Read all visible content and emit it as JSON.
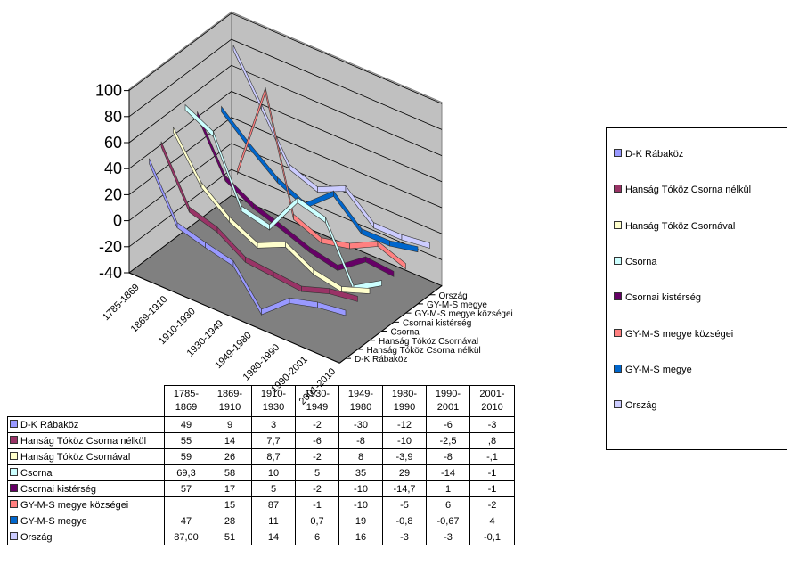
{
  "chart_data": {
    "type": "line",
    "title": "",
    "categories": [
      "1785-1869",
      "1869-1910",
      "1910-1930",
      "1930-1949",
      "1949-1980",
      "1980-1990",
      "1990-2001",
      "2001-2010"
    ],
    "ylim": [
      -40,
      100
    ],
    "yticks": [
      "100",
      "80",
      "60",
      "40",
      "20",
      "0",
      "-20",
      "-40"
    ],
    "grid": true,
    "legend_position": "right",
    "series": [
      {
        "name": "D-K Rábaköz",
        "color": "#9999ff",
        "values": [
          49,
          9,
          3,
          -2,
          -30,
          -12,
          -6,
          -3
        ],
        "labels": [
          "49",
          "9",
          "3",
          "-2",
          "-30",
          "-12",
          "-6",
          "-3"
        ]
      },
      {
        "name": "Hanság Tóköz Csorna nélkül",
        "color": "#993366",
        "values": [
          55,
          14,
          7.7,
          -6,
          -8,
          -10,
          -2.5,
          0.8
        ],
        "labels": [
          "55",
          "14",
          "7,7",
          "-6",
          "-8",
          "-10",
          "-2,5",
          ",8"
        ]
      },
      {
        "name": "Hanság Tóköz Csornával",
        "color": "#ffffcc",
        "values": [
          59,
          26,
          8.7,
          -2,
          8,
          -3.9,
          -8,
          -0.1
        ],
        "labels": [
          "59",
          "26",
          "8,7",
          "-2",
          "8",
          "-3,9",
          "-8",
          "-,1"
        ]
      },
      {
        "name": "Csorna",
        "color": "#ccffff",
        "values": [
          69.3,
          58,
          10,
          5,
          35,
          29,
          -14,
          -1
        ],
        "labels": [
          "69,3",
          "58",
          "10",
          "5",
          "35",
          "29",
          "-14",
          "-1"
        ]
      },
      {
        "name": "Csornai kistérség",
        "color": "#660066",
        "values": [
          57,
          17,
          5,
          -2,
          -10,
          -14.7,
          1,
          -1
        ],
        "labels": [
          "57",
          "17",
          "5",
          "-2",
          "-10",
          "-14,7",
          "1",
          "-1"
        ]
      },
      {
        "name": "GY-M-S megye községei",
        "color": "#ff8080",
        "values": [
          null,
          15,
          87,
          -1,
          -10,
          -5,
          6,
          -2
        ],
        "labels": [
          "",
          "15",
          "87",
          "-1",
          "-10",
          "-5",
          "6",
          "-2"
        ]
      },
      {
        "name": "GY-M-S megye",
        "color": "#0066cc",
        "values": [
          47,
          28,
          11,
          0.7,
          19,
          -0.8,
          -0.67,
          4
        ],
        "labels": [
          "47",
          "28",
          "11",
          "0,7",
          "19",
          "-0,8",
          "-0,67",
          "4"
        ]
      },
      {
        "name": "Ország",
        "color": "#ccccff",
        "values": [
          87,
          51,
          14,
          6,
          16,
          -3,
          -3,
          -0.1
        ],
        "labels": [
          "87,00",
          "51",
          "14",
          "6",
          "16",
          "-3",
          "-3",
          "-0,1"
        ]
      }
    ]
  },
  "table": {
    "headers": [
      [
        "1785-",
        "1869"
      ],
      [
        "1869-",
        "1910"
      ],
      [
        "1910-",
        "1930"
      ],
      [
        "1930-",
        "1949"
      ],
      [
        "1949-",
        "1980"
      ],
      [
        "1980-",
        "1990"
      ],
      [
        "1990-",
        "2001"
      ],
      [
        "2001-",
        "2010"
      ]
    ]
  }
}
